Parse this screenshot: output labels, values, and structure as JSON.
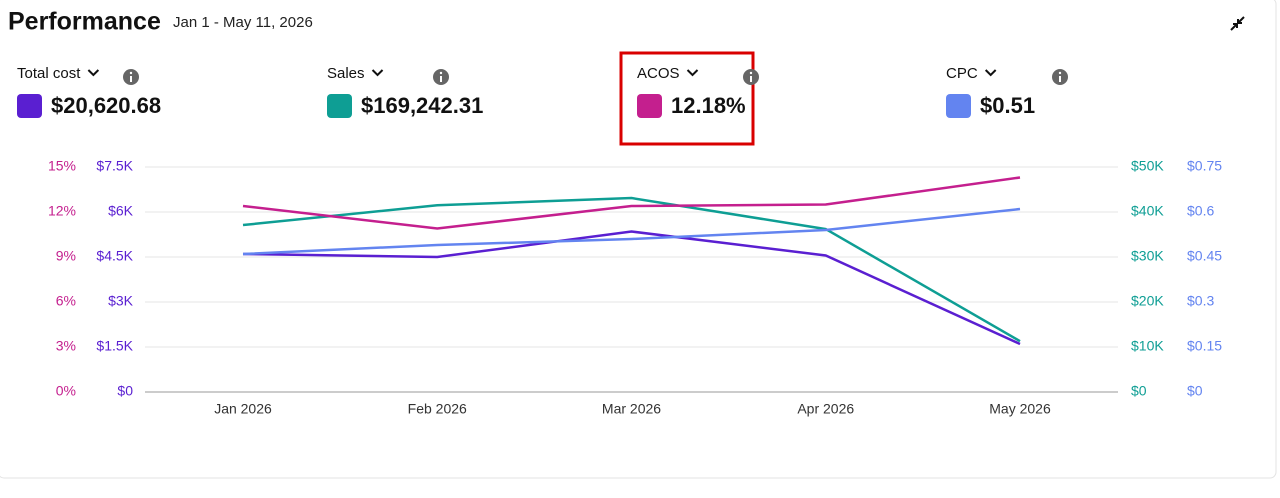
{
  "header": {
    "title": "Performance",
    "date_range": "Jan 1 - May 11, 2026"
  },
  "chart_data": {
    "type": "line",
    "categories": [
      "Jan 2026",
      "Feb 2026",
      "Mar 2026",
      "Apr 2026",
      "May 2026"
    ],
    "ylim": [
      0,
      15
    ],
    "yticks": [
      {
        "value": 0,
        "label": "0%"
      },
      {
        "value": 3,
        "label": "3%"
      },
      {
        "value": 6,
        "label": "6%"
      },
      {
        "value": 9,
        "label": "9%"
      },
      {
        "value": 12,
        "label": "12%"
      },
      {
        "value": 15,
        "label": "15%"
      }
    ],
    "y2lim": [
      0,
      7500
    ],
    "y2ticks": [
      {
        "value": 0,
        "label": "$0"
      },
      {
        "value": 1500,
        "label": "$1.5K"
      },
      {
        "value": 3000,
        "label": "$3K"
      },
      {
        "value": 4500,
        "label": "$4.5K"
      },
      {
        "value": 6000,
        "label": "$6K"
      },
      {
        "value": 7500,
        "label": "$7.5K"
      }
    ],
    "y3lim": [
      0,
      50000
    ],
    "y3ticks": [
      {
        "value": 0,
        "label": "$0"
      },
      {
        "value": 10000,
        "label": "$10K"
      },
      {
        "value": 20000,
        "label": "$20K"
      },
      {
        "value": 30000,
        "label": "$30K"
      },
      {
        "value": 40000,
        "label": "$40K"
      },
      {
        "value": 50000,
        "label": "$50K"
      }
    ],
    "y4lim": [
      0,
      0.75
    ],
    "y4ticks": [
      {
        "value": 0,
        "label": "$0"
      },
      {
        "value": 0.15,
        "label": "$0.15"
      },
      {
        "value": 0.3,
        "label": "$0.3"
      },
      {
        "value": 0.45,
        "label": "$0.45"
      },
      {
        "value": 0.6,
        "label": "$0.6"
      },
      {
        "value": 0.75,
        "label": "$0.75"
      }
    ],
    "grid": true,
    "series": [
      {
        "name": "Total cost",
        "total": "$20,620.68",
        "color": "#5a1fd1",
        "axis": "y2",
        "values": [
          4600,
          4500,
          5350,
          4550,
          1600
        ]
      },
      {
        "name": "Sales",
        "total": "$169,242.31",
        "color": "#0e9e94",
        "axis": "y3",
        "values": [
          37100,
          41500,
          43100,
          36200,
          11300
        ]
      },
      {
        "name": "ACOS",
        "total": "12.18%",
        "color": "#c41f8e",
        "axis": "y",
        "values": [
          12.4,
          10.9,
          12.4,
          12.5,
          14.3
        ]
      },
      {
        "name": "CPC",
        "total": "$0.51",
        "color": "#6384f0",
        "axis": "y4",
        "values": [
          0.46,
          0.49,
          0.51,
          0.54,
          0.61
        ]
      }
    ]
  }
}
